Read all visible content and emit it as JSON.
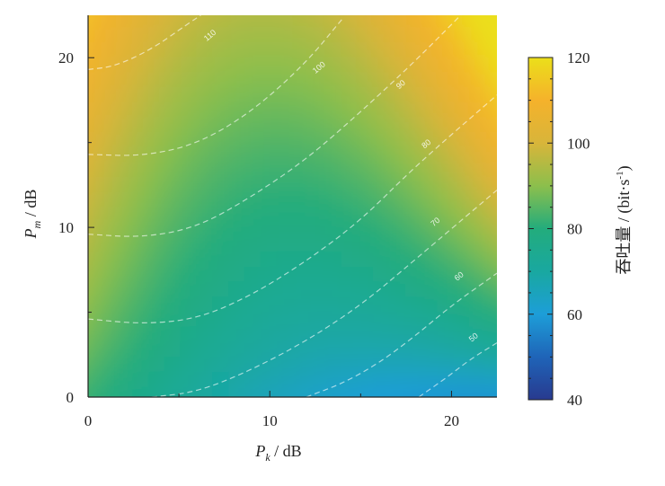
{
  "chart_data": {
    "type": "heatmap",
    "title": "",
    "xlabel": {
      "base": "P",
      "sub": "k",
      "unit": " / dB"
    },
    "ylabel": {
      "base": "P",
      "sub": "m",
      "unit": " / dB"
    },
    "xlim": [
      0,
      22.5
    ],
    "ylim": [
      0,
      22.5
    ],
    "x_ticks": [
      0,
      10,
      20
    ],
    "y_ticks": [
      0,
      10,
      20
    ],
    "colorbar": {
      "label": "吞吐量 / (bit·s",
      "label_sup": "-1",
      "label_tail": ")",
      "range": [
        40,
        120
      ],
      "ticks": [
        40,
        60,
        80,
        100,
        120
      ],
      "colormap": [
        "#283a8f",
        "#1f64b8",
        "#1d9ed8",
        "#19a8a0",
        "#23ac7c",
        "#8cbf4c",
        "#d8b53a",
        "#f5b22b",
        "#ebdf1a"
      ]
    },
    "contours": [
      {
        "level": 110,
        "points": [
          [
            0,
            19.3
          ],
          [
            1.5,
            19.5
          ],
          [
            3.5,
            20.5
          ],
          [
            5.5,
            22
          ],
          [
            6.2,
            22.5
          ]
        ]
      },
      {
        "level": 100,
        "points": [
          [
            0,
            14.3
          ],
          [
            3,
            14.2
          ],
          [
            6,
            14.9
          ],
          [
            9,
            16.8
          ],
          [
            12,
            19.7
          ],
          [
            14,
            22.3
          ]
        ]
      },
      {
        "level": 90,
        "points": [
          [
            0,
            9.6
          ],
          [
            3,
            9.4
          ],
          [
            6,
            10
          ],
          [
            9,
            11.8
          ],
          [
            12,
            14
          ],
          [
            15,
            16.8
          ],
          [
            18,
            19.8
          ],
          [
            20.5,
            22.5
          ]
        ]
      },
      {
        "level": 80,
        "points": [
          [
            0,
            4.6
          ],
          [
            3,
            4.3
          ],
          [
            6,
            4.6
          ],
          [
            9,
            6
          ],
          [
            12,
            8
          ],
          [
            15,
            10.4
          ],
          [
            18,
            13.6
          ],
          [
            22.5,
            17.8
          ]
        ]
      },
      {
        "level": 70,
        "points": [
          [
            3.5,
            0
          ],
          [
            6,
            0.3
          ],
          [
            9,
            1.6
          ],
          [
            12,
            3.3
          ],
          [
            15,
            5.4
          ],
          [
            18,
            8.1
          ],
          [
            22.5,
            12.2
          ]
        ]
      },
      {
        "level": 60,
        "points": [
          [
            12,
            0
          ],
          [
            14,
            0.8
          ],
          [
            16,
            2
          ],
          [
            18,
            3.6
          ],
          [
            20,
            5.4
          ],
          [
            22.5,
            7.3
          ]
        ]
      },
      {
        "level": 50,
        "points": [
          [
            18.2,
            0
          ],
          [
            19.8,
            1.2
          ],
          [
            21,
            2.2
          ],
          [
            22.5,
            3.2
          ]
        ]
      }
    ],
    "contour_labels": [
      {
        "text": "110",
        "x": 6.8,
        "y": 21.2
      },
      {
        "text": "100",
        "x": 12.8,
        "y": 19.3
      },
      {
        "text": "90",
        "x": 17.3,
        "y": 18.3
      },
      {
        "text": "80",
        "x": 18.7,
        "y": 14.8
      },
      {
        "text": "70",
        "x": 19.2,
        "y": 10.2
      },
      {
        "text": "60",
        "x": 20.5,
        "y": 7.0
      },
      {
        "text": "50",
        "x": 21.3,
        "y": 3.4
      }
    ]
  }
}
